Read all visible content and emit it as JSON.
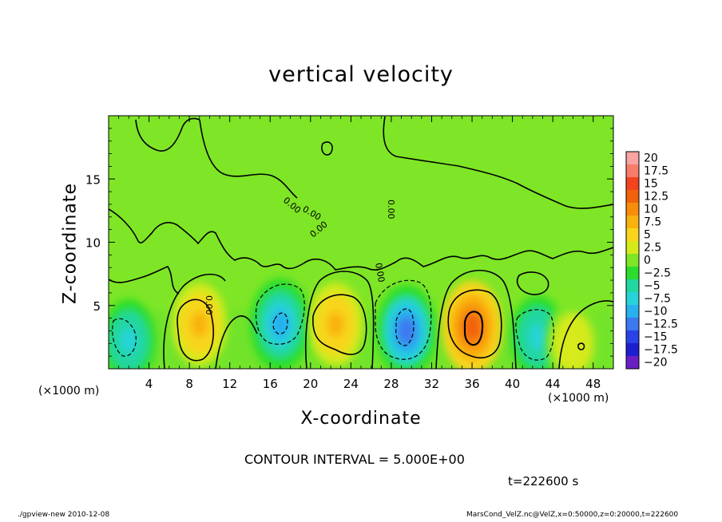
{
  "chart_data": {
    "type": "heatmap",
    "title": "vertical velocity",
    "xlabel": "X-coordinate",
    "ylabel": "Z-coordinate",
    "x_unit_label": "(×1000 m)",
    "xlim": [
      0,
      50
    ],
    "ylim": [
      0,
      20
    ],
    "x_ticks": [
      "4",
      "8",
      "12",
      "16",
      "20",
      "24",
      "28",
      "32",
      "36",
      "40",
      "44",
      "48"
    ],
    "x_tick_values": [
      4,
      8,
      12,
      16,
      20,
      24,
      28,
      32,
      36,
      40,
      44,
      48
    ],
    "y_ticks": [
      "5",
      "10",
      "15"
    ],
    "y_tick_values": [
      5,
      10,
      15
    ],
    "contour_interval_text": "CONTOUR INTERVAL = 5.000E+00",
    "contour_interval": 5.0,
    "colorbar": {
      "labels": [
        "20",
        "17.5",
        "15",
        "12.5",
        "10",
        "7.5",
        "5",
        "2.5",
        "0",
        "−2.5",
        "−5",
        "−7.5",
        "−10",
        "−12.5",
        "−15",
        "−17.5",
        "−20"
      ],
      "values": [
        20,
        17.5,
        15,
        12.5,
        10,
        7.5,
        5,
        2.5,
        0,
        -2.5,
        -5,
        -7.5,
        -10,
        -12.5,
        -15,
        -17.5,
        -20
      ],
      "colors": [
        "#f9a3a3",
        "#f77c6a",
        "#f4421f",
        "#f2620c",
        "#f78d0b",
        "#f9b10d",
        "#f8d51a",
        "#d6ea1a",
        "#7ee626",
        "#2cdd2c",
        "#22d7a0",
        "#27d3d9",
        "#28b0ef",
        "#3c78f0",
        "#2a42e8",
        "#1d1ecf",
        "#6a1fc4"
      ]
    },
    "cells": [
      {
        "x": 2,
        "z": 2.2,
        "value": -7.5
      },
      {
        "x": 9,
        "z": 3.5,
        "value": 7.5
      },
      {
        "x": 17,
        "z": 3.5,
        "value": -10
      },
      {
        "x": 22.5,
        "z": 3.5,
        "value": 7.5
      },
      {
        "x": 29.5,
        "z": 3,
        "value": -12.5
      },
      {
        "x": 36,
        "z": 3.3,
        "value": 12.5
      },
      {
        "x": 42.5,
        "z": 2.5,
        "value": -7.5
      },
      {
        "x": 46,
        "z": 2,
        "value": 2.5
      }
    ]
  },
  "time_text": "t=222600 s",
  "footer_left": "./gpview-new  2010-12-08",
  "footer_right": "MarsCond_VelZ.nc@VelZ,x=0:50000,z=0:20000,t=222600",
  "contour_label": "0.00"
}
